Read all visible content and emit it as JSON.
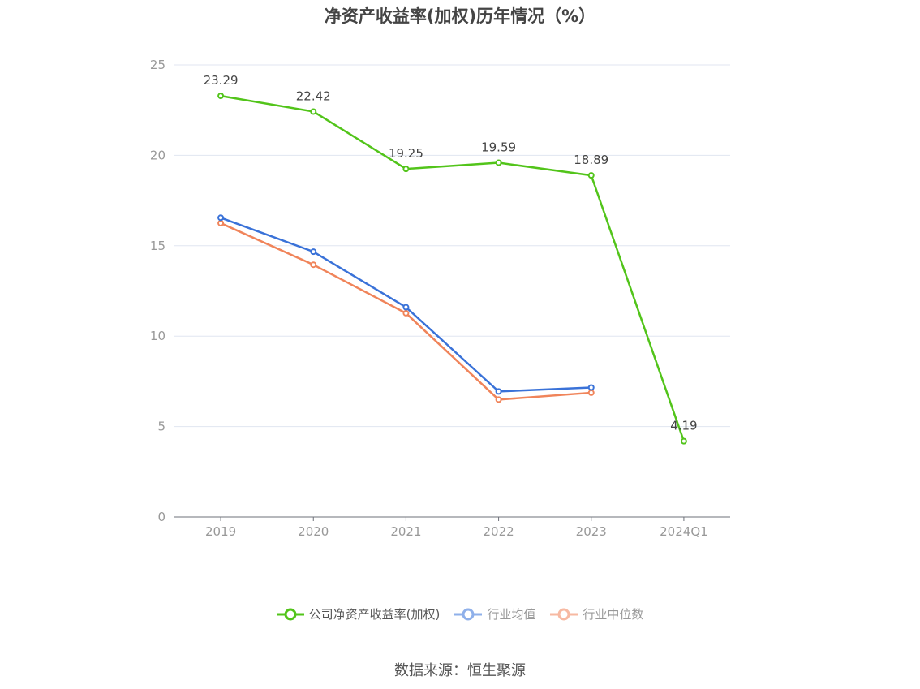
{
  "title": "净资产收益率(加权)历年情况（%）",
  "source": "数据来源：恒生聚源",
  "chart_data": {
    "type": "line",
    "categories": [
      "2019",
      "2020",
      "2021",
      "2022",
      "2023",
      "2024Q1"
    ],
    "ylim": [
      0,
      25
    ],
    "yticks": [
      0,
      5,
      10,
      15,
      20,
      25
    ],
    "grid": true,
    "legend_position": "bottom",
    "series": [
      {
        "name": "公司净资产收益率(加权)",
        "color": "#52c41a",
        "values": [
          23.29,
          22.42,
          19.25,
          19.59,
          18.89,
          4.19
        ],
        "labels": true
      },
      {
        "name": "行业均值",
        "color": "#3a72d8",
        "values": [
          16.55,
          14.67,
          11.6,
          6.94,
          7.16,
          null
        ],
        "labels": false
      },
      {
        "name": "行业中位数",
        "color": "#f0845a",
        "values": [
          16.25,
          13.95,
          11.27,
          6.49,
          6.87,
          null
        ],
        "labels": false
      }
    ]
  },
  "legend": {
    "items": [
      {
        "label": "公司净资产收益率(加权)",
        "color": "#52c41a",
        "faded": false
      },
      {
        "label": "行业均值",
        "color": "#8fb0ea",
        "faded": true
      },
      {
        "label": "行业中位数",
        "color": "#f7b9a2",
        "faded": true
      }
    ]
  }
}
